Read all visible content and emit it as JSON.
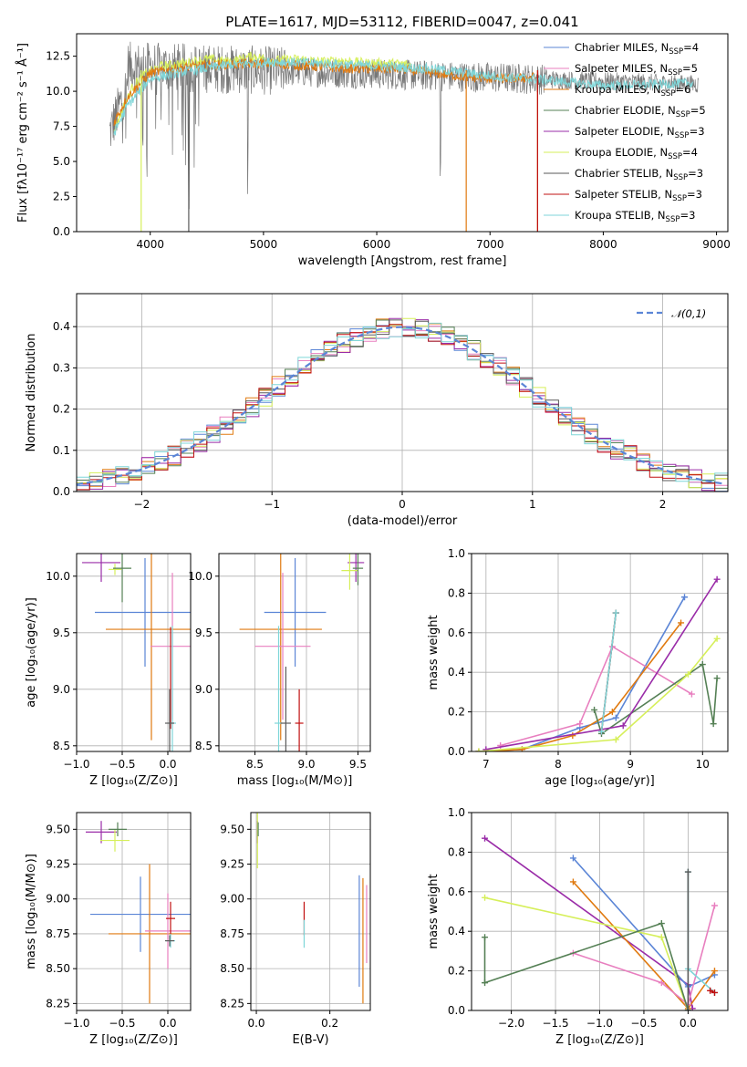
{
  "colors": {
    "Chabrier MILES": "#5b85d6",
    "Salpeter MILES": "#e87fbf",
    "Kroupa MILES": "#e07a10",
    "Chabrier ELODIE": "#558055",
    "Salpeter ELODIE": "#9a2ca8",
    "Kroupa ELODIE": "#d6ef5a",
    "Chabrier STELIB": "#5a5a5a",
    "Salpeter STELIB": "#c01010",
    "Kroupa STELIB": "#7fd6d8"
  },
  "chart_data": [
    {
      "id": "spectrum",
      "type": "line",
      "title": "PLATE=1617, MJD=53112, FIBERID=0047, z=0.041",
      "xlabel": "wavelength [Angstrom, rest frame]",
      "ylabel": "Flux [fλ10⁻¹⁷ erg cm⁻² s⁻¹ Å⁻¹]",
      "xlim": [
        3350,
        9100
      ],
      "ylim": [
        0,
        14.1
      ],
      "xticks": [
        4000,
        5000,
        6000,
        7000,
        8000,
        9000
      ],
      "yticks": [
        0.0,
        2.5,
        5.0,
        7.5,
        10.0,
        12.5
      ],
      "grid": false,
      "legend_position": "top-right",
      "legend": [
        {
          "label": "Chabrier MILES, N",
          "sub": "SSP",
          "suffix": "=4",
          "series": "Chabrier MILES"
        },
        {
          "label": "Salpeter MILES, N",
          "sub": "SSP",
          "suffix": "=5",
          "series": "Salpeter MILES"
        },
        {
          "label": "Kroupa MILES, N",
          "sub": "SSP",
          "suffix": "=6",
          "series": "Kroupa MILES"
        },
        {
          "label": "Chabrier ELODIE, N",
          "sub": "SSP",
          "suffix": "=5",
          "series": "Chabrier ELODIE"
        },
        {
          "label": "Salpeter ELODIE, N",
          "sub": "SSP",
          "suffix": "=3",
          "series": "Salpeter ELODIE"
        },
        {
          "label": "Kroupa ELODIE, N",
          "sub": "SSP",
          "suffix": "=4",
          "series": "Kroupa ELODIE"
        },
        {
          "label": "Chabrier STELIB, N",
          "sub": "SSP",
          "suffix": "=3",
          "series": "Chabrier STELIB"
        },
        {
          "label": "Salpeter STELIB, N",
          "sub": "SSP",
          "suffix": "=3",
          "series": "Salpeter STELIB"
        },
        {
          "label": "Kroupa STELIB, N",
          "sub": "SSP",
          "suffix": "=3",
          "series": "Kroupa STELIB"
        }
      ],
      "series": [
        {
          "name": "Kroupa ELODIE",
          "x": [
            3680,
            3750,
            3850,
            3950,
            4100,
            4300,
            4500,
            4700,
            4900,
            5100,
            5300,
            5500,
            5700,
            5900,
            6100,
            6300
          ],
          "y": [
            7.2,
            8.6,
            10.4,
            11.2,
            11.8,
            12.0,
            12.3,
            12.1,
            12.5,
            12.2,
            12.3,
            12.1,
            12.2,
            12.0,
            12.0,
            11.9
          ]
        },
        {
          "name": "Kroupa MILES",
          "x": [
            3680,
            3800,
            4000,
            4300,
            4600,
            5000,
            5400,
            5800,
            6200,
            6600,
            6800,
            7000,
            7200,
            7400
          ],
          "y": [
            7.8,
            9.6,
            11.3,
            11.7,
            11.9,
            12.0,
            11.8,
            11.6,
            11.6,
            11.2,
            11.0,
            10.9,
            10.9,
            11.0
          ]
        },
        {
          "name": "Kroupa STELIB",
          "x": [
            3680,
            3800,
            4000,
            4300,
            4700,
            5100,
            5500,
            6000,
            6500,
            7000,
            7500,
            8000,
            8500,
            8800
          ],
          "y": [
            7.0,
            9.0,
            10.9,
            11.4,
            11.9,
            12.1,
            12.0,
            11.8,
            11.6,
            11.1,
            10.8,
            10.4,
            10.5,
            10.6
          ]
        }
      ],
      "noisy_data": {
        "name": "data",
        "x_range": [
          3640,
          8840
        ],
        "level": [
          11.8,
          10.5
        ],
        "scatter": 1.1,
        "absorption_dips": [
          3935,
          3970,
          4340,
          4861,
          6563
        ]
      },
      "dropouts": [
        {
          "series": "Kroupa ELODIE",
          "x": 3920
        },
        {
          "series": "Chabrier STELIB",
          "x": 4340
        },
        {
          "series": "Kroupa MILES",
          "x": 6790
        },
        {
          "series": "Kroupa MILES",
          "x": 7420
        },
        {
          "series": "Salpeter STELIB",
          "x": 7420
        }
      ]
    },
    {
      "id": "residuals",
      "type": "step",
      "xlabel": "(data-model)/error",
      "ylabel": "Normed distribution",
      "xlim": [
        -2.5,
        2.5
      ],
      "ylim": [
        0,
        0.48
      ],
      "xticks": [
        -2,
        -1,
        0,
        1,
        2
      ],
      "yticks": [
        0.0,
        0.1,
        0.2,
        0.3,
        0.4
      ],
      "grid": true,
      "legend_position": "top-right",
      "reference_curve": {
        "label": "𝒩(0,1)",
        "mean": 0,
        "sigma": 1,
        "style": "dashed",
        "color": "#5b85d6"
      },
      "bin_width": 0.1,
      "series_names": [
        "Chabrier MILES",
        "Salpeter MILES",
        "Kroupa MILES",
        "Chabrier ELODIE",
        "Salpeter ELODIE",
        "Kroupa ELODIE",
        "Chabrier STELIB",
        "Salpeter STELIB",
        "Kroupa STELIB"
      ]
    },
    {
      "id": "age_vs_Z",
      "type": "errorbar",
      "xlabel": "Z [log₁₀(Z/Z⊙)]",
      "ylabel": "age  [log₁₀(age/yr)]",
      "xlim": [
        -1.0,
        0.25
      ],
      "ylim": [
        8.45,
        10.2
      ],
      "xticks": [
        -1.0,
        -0.5,
        0.0
      ],
      "xticklabels": [
        "−1.0",
        "−0.5",
        "0.0"
      ],
      "yticks": [
        8.5,
        9.0,
        9.5,
        10.0
      ],
      "grid": true,
      "points": [
        {
          "series": "Salpeter ELODIE",
          "x": -0.73,
          "y": 10.12,
          "xerr": 0.21,
          "yerr": 0.17
        },
        {
          "series": "Kroupa ELODIE",
          "x": -0.58,
          "y": 10.06,
          "xerr": 0.07,
          "yerr": 0.05
        },
        {
          "series": "Chabrier ELODIE",
          "x": -0.5,
          "y": 10.07,
          "xerr": 0.1,
          "yerr": 0.3
        },
        {
          "series": "Chabrier MILES",
          "x": -0.25,
          "y": 9.68,
          "xerr": 0.55,
          "yerr": 0.48
        },
        {
          "series": "Kroupa MILES",
          "x": -0.18,
          "y": 9.53,
          "xerr": 0.5,
          "yerr": 0.98
        },
        {
          "series": "Salpeter MILES",
          "x": 0.05,
          "y": 9.38,
          "xerr": 0.24,
          "yerr": 0.65
        },
        {
          "series": "Salpeter STELIB",
          "x": 0.03,
          "y": 9.1,
          "xerr": 0.0,
          "yerr": 0.45
        },
        {
          "series": "Kroupa STELIB",
          "x": 0.05,
          "y": 8.7,
          "xerr": 0.04,
          "yerr": 0.86
        },
        {
          "series": "Chabrier STELIB",
          "x": 0.02,
          "y": 8.7,
          "xerr": 0.05,
          "yerr": 0.3
        }
      ]
    },
    {
      "id": "age_vs_mass",
      "type": "errorbar",
      "xlabel": "mass [log₁₀(M/M⊙)]",
      "ylabel": "",
      "xlim": [
        8.15,
        9.62
      ],
      "ylim": [
        8.45,
        10.2
      ],
      "xticks": [
        8.5,
        9.0,
        9.5
      ],
      "yticks": [
        8.5,
        9.0,
        9.5,
        10.0
      ],
      "grid": true,
      "points": [
        {
          "series": "Salpeter ELODIE",
          "x": 9.48,
          "y": 10.12,
          "xerr": 0.08,
          "yerr": 0.17
        },
        {
          "series": "Kroupa ELODIE",
          "x": 9.42,
          "y": 10.05,
          "xerr": 0.08,
          "yerr": 0.17
        },
        {
          "series": "Chabrier ELODIE",
          "x": 9.5,
          "y": 10.07,
          "xerr": 0.05,
          "yerr": 0.15
        },
        {
          "series": "Chabrier MILES",
          "x": 8.89,
          "y": 9.68,
          "xerr": 0.3,
          "yerr": 0.48
        },
        {
          "series": "Kroupa MILES",
          "x": 8.75,
          "y": 9.53,
          "xerr": 0.4,
          "yerr": 0.98
        },
        {
          "series": "Salpeter MILES",
          "x": 8.77,
          "y": 9.38,
          "xerr": 0.27,
          "yerr": 0.65
        },
        {
          "series": "Salpeter STELIB",
          "x": 8.93,
          "y": 8.7,
          "xerr": 0.04,
          "yerr": 0.3
        },
        {
          "series": "Kroupa STELIB",
          "x": 8.73,
          "y": 8.7,
          "xerr": 0.04,
          "yerr": 0.86
        },
        {
          "series": "Chabrier STELIB",
          "x": 8.8,
          "y": 8.7,
          "xerr": 0.05,
          "yerr": 0.5
        }
      ]
    },
    {
      "id": "weight_vs_age",
      "type": "line",
      "xlabel": "age  [log₁₀(age/yr)]",
      "ylabel": "mass weight",
      "xlim": [
        6.8,
        10.35
      ],
      "ylim": [
        0,
        1.0
      ],
      "xticks": [
        7,
        8,
        9,
        10
      ],
      "yticks": [
        0.0,
        0.2,
        0.4,
        0.6,
        0.8,
        1.0
      ],
      "grid": true,
      "series": [
        {
          "name": "Chabrier MILES",
          "x": [
            6.9,
            7.5,
            8.3,
            8.8,
            9.75
          ],
          "y": [
            0.0,
            0.01,
            0.12,
            0.17,
            0.78
          ]
        },
        {
          "name": "Salpeter MILES",
          "x": [
            7.2,
            8.3,
            8.75,
            9.85
          ],
          "y": [
            0.03,
            0.14,
            0.53,
            0.29
          ]
        },
        {
          "name": "Kroupa MILES",
          "x": [
            6.9,
            7.5,
            8.2,
            8.75,
            9.7
          ],
          "y": [
            0.0,
            0.01,
            0.08,
            0.2,
            0.65
          ]
        },
        {
          "name": "Chabrier ELODIE",
          "x": [
            8.5,
            8.6,
            10.0,
            10.15,
            10.2
          ],
          "y": [
            0.21,
            0.09,
            0.44,
            0.14,
            0.37
          ]
        },
        {
          "name": "Salpeter ELODIE",
          "x": [
            7.0,
            8.9,
            10.2
          ],
          "y": [
            0.01,
            0.13,
            0.87
          ]
        },
        {
          "name": "Kroupa ELODIE",
          "x": [
            6.9,
            8.8,
            9.8,
            10.2
          ],
          "y": [
            0.0,
            0.06,
            0.39,
            0.57
          ]
        },
        {
          "name": "Chabrier STELIB",
          "x": [
            8.6,
            8.8
          ],
          "y": [
            0.1,
            0.7
          ]
        },
        {
          "name": "Salpeter STELIB",
          "x": [
            8.6,
            8.8
          ],
          "y": [
            0.1,
            0.7
          ]
        },
        {
          "name": "Kroupa STELIB",
          "x": [
            8.6,
            8.8
          ],
          "y": [
            0.1,
            0.7
          ]
        }
      ]
    },
    {
      "id": "mass_vs_Z",
      "type": "errorbar",
      "xlabel": "Z [log₁₀(Z/Z⊙)]",
      "ylabel": "mass [log₁₀(M/M⊙)]",
      "xlim": [
        -1.0,
        0.25
      ],
      "ylim": [
        8.2,
        9.62
      ],
      "xticks": [
        -1.0,
        -0.5,
        0.0
      ],
      "xticklabels": [
        "−1.0",
        "−0.5",
        "0.0"
      ],
      "yticks": [
        8.25,
        8.5,
        8.75,
        9.0,
        9.25,
        9.5
      ],
      "grid": true,
      "points": [
        {
          "series": "Salpeter ELODIE",
          "x": -0.73,
          "y": 9.48,
          "xerr": 0.17,
          "yerr": 0.08
        },
        {
          "series": "Kroupa ELODIE",
          "x": -0.58,
          "y": 9.42,
          "xerr": 0.16,
          "yerr": 0.08
        },
        {
          "series": "Chabrier ELODIE",
          "x": -0.55,
          "y": 9.5,
          "xerr": 0.1,
          "yerr": 0.05
        },
        {
          "series": "Chabrier MILES",
          "x": -0.3,
          "y": 8.89,
          "xerr": 0.55,
          "yerr": 0.27
        },
        {
          "series": "Kroupa MILES",
          "x": -0.2,
          "y": 8.75,
          "xerr": 0.45,
          "yerr": 0.5
        },
        {
          "series": "Salpeter MILES",
          "x": 0.0,
          "y": 8.77,
          "xerr": 0.25,
          "yerr": 0.27
        },
        {
          "series": "Salpeter STELIB",
          "x": 0.03,
          "y": 8.86,
          "xerr": 0.05,
          "yerr": 0.12
        },
        {
          "series": "Kroupa STELIB",
          "x": 0.03,
          "y": 8.7,
          "xerr": 0.05,
          "yerr": 0.05
        },
        {
          "series": "Chabrier STELIB",
          "x": 0.02,
          "y": 8.7,
          "xerr": 0.05,
          "yerr": 0.04
        }
      ]
    },
    {
      "id": "mass_vs_ebv",
      "type": "errorbar",
      "xlabel": "E(B-V)",
      "ylabel": "",
      "xlim": [
        -0.015,
        0.31
      ],
      "ylim": [
        8.2,
        9.62
      ],
      "xticks": [
        0.0,
        0.2
      ],
      "yticks": [
        8.25,
        8.5,
        8.75,
        9.0,
        9.25,
        9.5
      ],
      "grid": true,
      "points": [
        {
          "series": "Salpeter ELODIE",
          "x": 0.003,
          "y": 9.48,
          "xerr": 0.0,
          "yerr": 0.08
        },
        {
          "series": "Kroupa ELODIE",
          "x": 0.003,
          "y": 9.42,
          "xerr": 0.0,
          "yerr": 0.2
        },
        {
          "series": "Chabrier ELODIE",
          "x": 0.005,
          "y": 9.5,
          "xerr": 0.0,
          "yerr": 0.05
        },
        {
          "series": "Salpeter STELIB",
          "x": 0.13,
          "y": 8.86,
          "xerr": 0.0,
          "yerr": 0.12
        },
        {
          "series": "Kroupa STELIB",
          "x": 0.13,
          "y": 8.75,
          "xerr": 0.0,
          "yerr": 0.1
        },
        {
          "series": "Chabrier MILES",
          "x": 0.28,
          "y": 8.77,
          "xerr": 0.0,
          "yerr": 0.4
        },
        {
          "series": "Kroupa MILES",
          "x": 0.29,
          "y": 8.7,
          "xerr": 0.0,
          "yerr": 0.45
        },
        {
          "series": "Salpeter MILES",
          "x": 0.3,
          "y": 8.82,
          "xerr": 0.0,
          "yerr": 0.28
        }
      ]
    },
    {
      "id": "weight_vs_Z",
      "type": "line",
      "xlabel": "Z [log₁₀(Z/Z⊙)]",
      "ylabel": "mass weight",
      "xlim": [
        -2.45,
        0.45
      ],
      "ylim": [
        0,
        1.0
      ],
      "xticks": [
        -2.0,
        -1.5,
        -1.0,
        -0.5,
        0.0
      ],
      "xticklabels": [
        "−2.0",
        "−1.5",
        "−1.0",
        "−0.5",
        "0.0"
      ],
      "yticks": [
        0.0,
        0.2,
        0.4,
        0.6,
        0.8,
        1.0
      ],
      "grid": true,
      "series": [
        {
          "name": "Salpeter ELODIE",
          "x": [
            -2.3,
            0.0,
            0.05
          ],
          "y": [
            0.87,
            0.13,
            0.01
          ]
        },
        {
          "name": "Chabrier MILES",
          "x": [
            -1.3,
            0.0,
            0.3
          ],
          "y": [
            0.77,
            0.12,
            0.18
          ]
        },
        {
          "name": "Kroupa MILES",
          "x": [
            -1.3,
            0.0,
            0.3
          ],
          "y": [
            0.65,
            0.01,
            0.2
          ]
        },
        {
          "name": "Kroupa ELODIE",
          "x": [
            -2.3,
            -0.3,
            0.0
          ],
          "y": [
            0.57,
            0.37,
            0.0
          ]
        },
        {
          "name": "Salpeter MILES",
          "x": [
            -1.3,
            -0.3,
            0.0,
            0.3
          ],
          "y": [
            0.29,
            0.14,
            0.03,
            0.53
          ]
        },
        {
          "name": "Chabrier ELODIE",
          "x": [
            -2.3,
            -2.3,
            -0.3,
            0.0,
            0.0
          ],
          "y": [
            0.37,
            0.14,
            0.44,
            0.0,
            0.0
          ]
        },
        {
          "name": "Kroupa STELIB",
          "x": [
            0.0,
            0.0,
            0.3
          ],
          "y": [
            0.7,
            0.21,
            0.09
          ]
        },
        {
          "name": "Chabrier STELIB",
          "x": [
            0.0,
            0.0
          ],
          "y": [
            0.7,
            0.0
          ]
        },
        {
          "name": "Salpeter STELIB",
          "x": [
            0.3,
            0.25
          ],
          "y": [
            0.09,
            0.1
          ]
        }
      ]
    }
  ]
}
